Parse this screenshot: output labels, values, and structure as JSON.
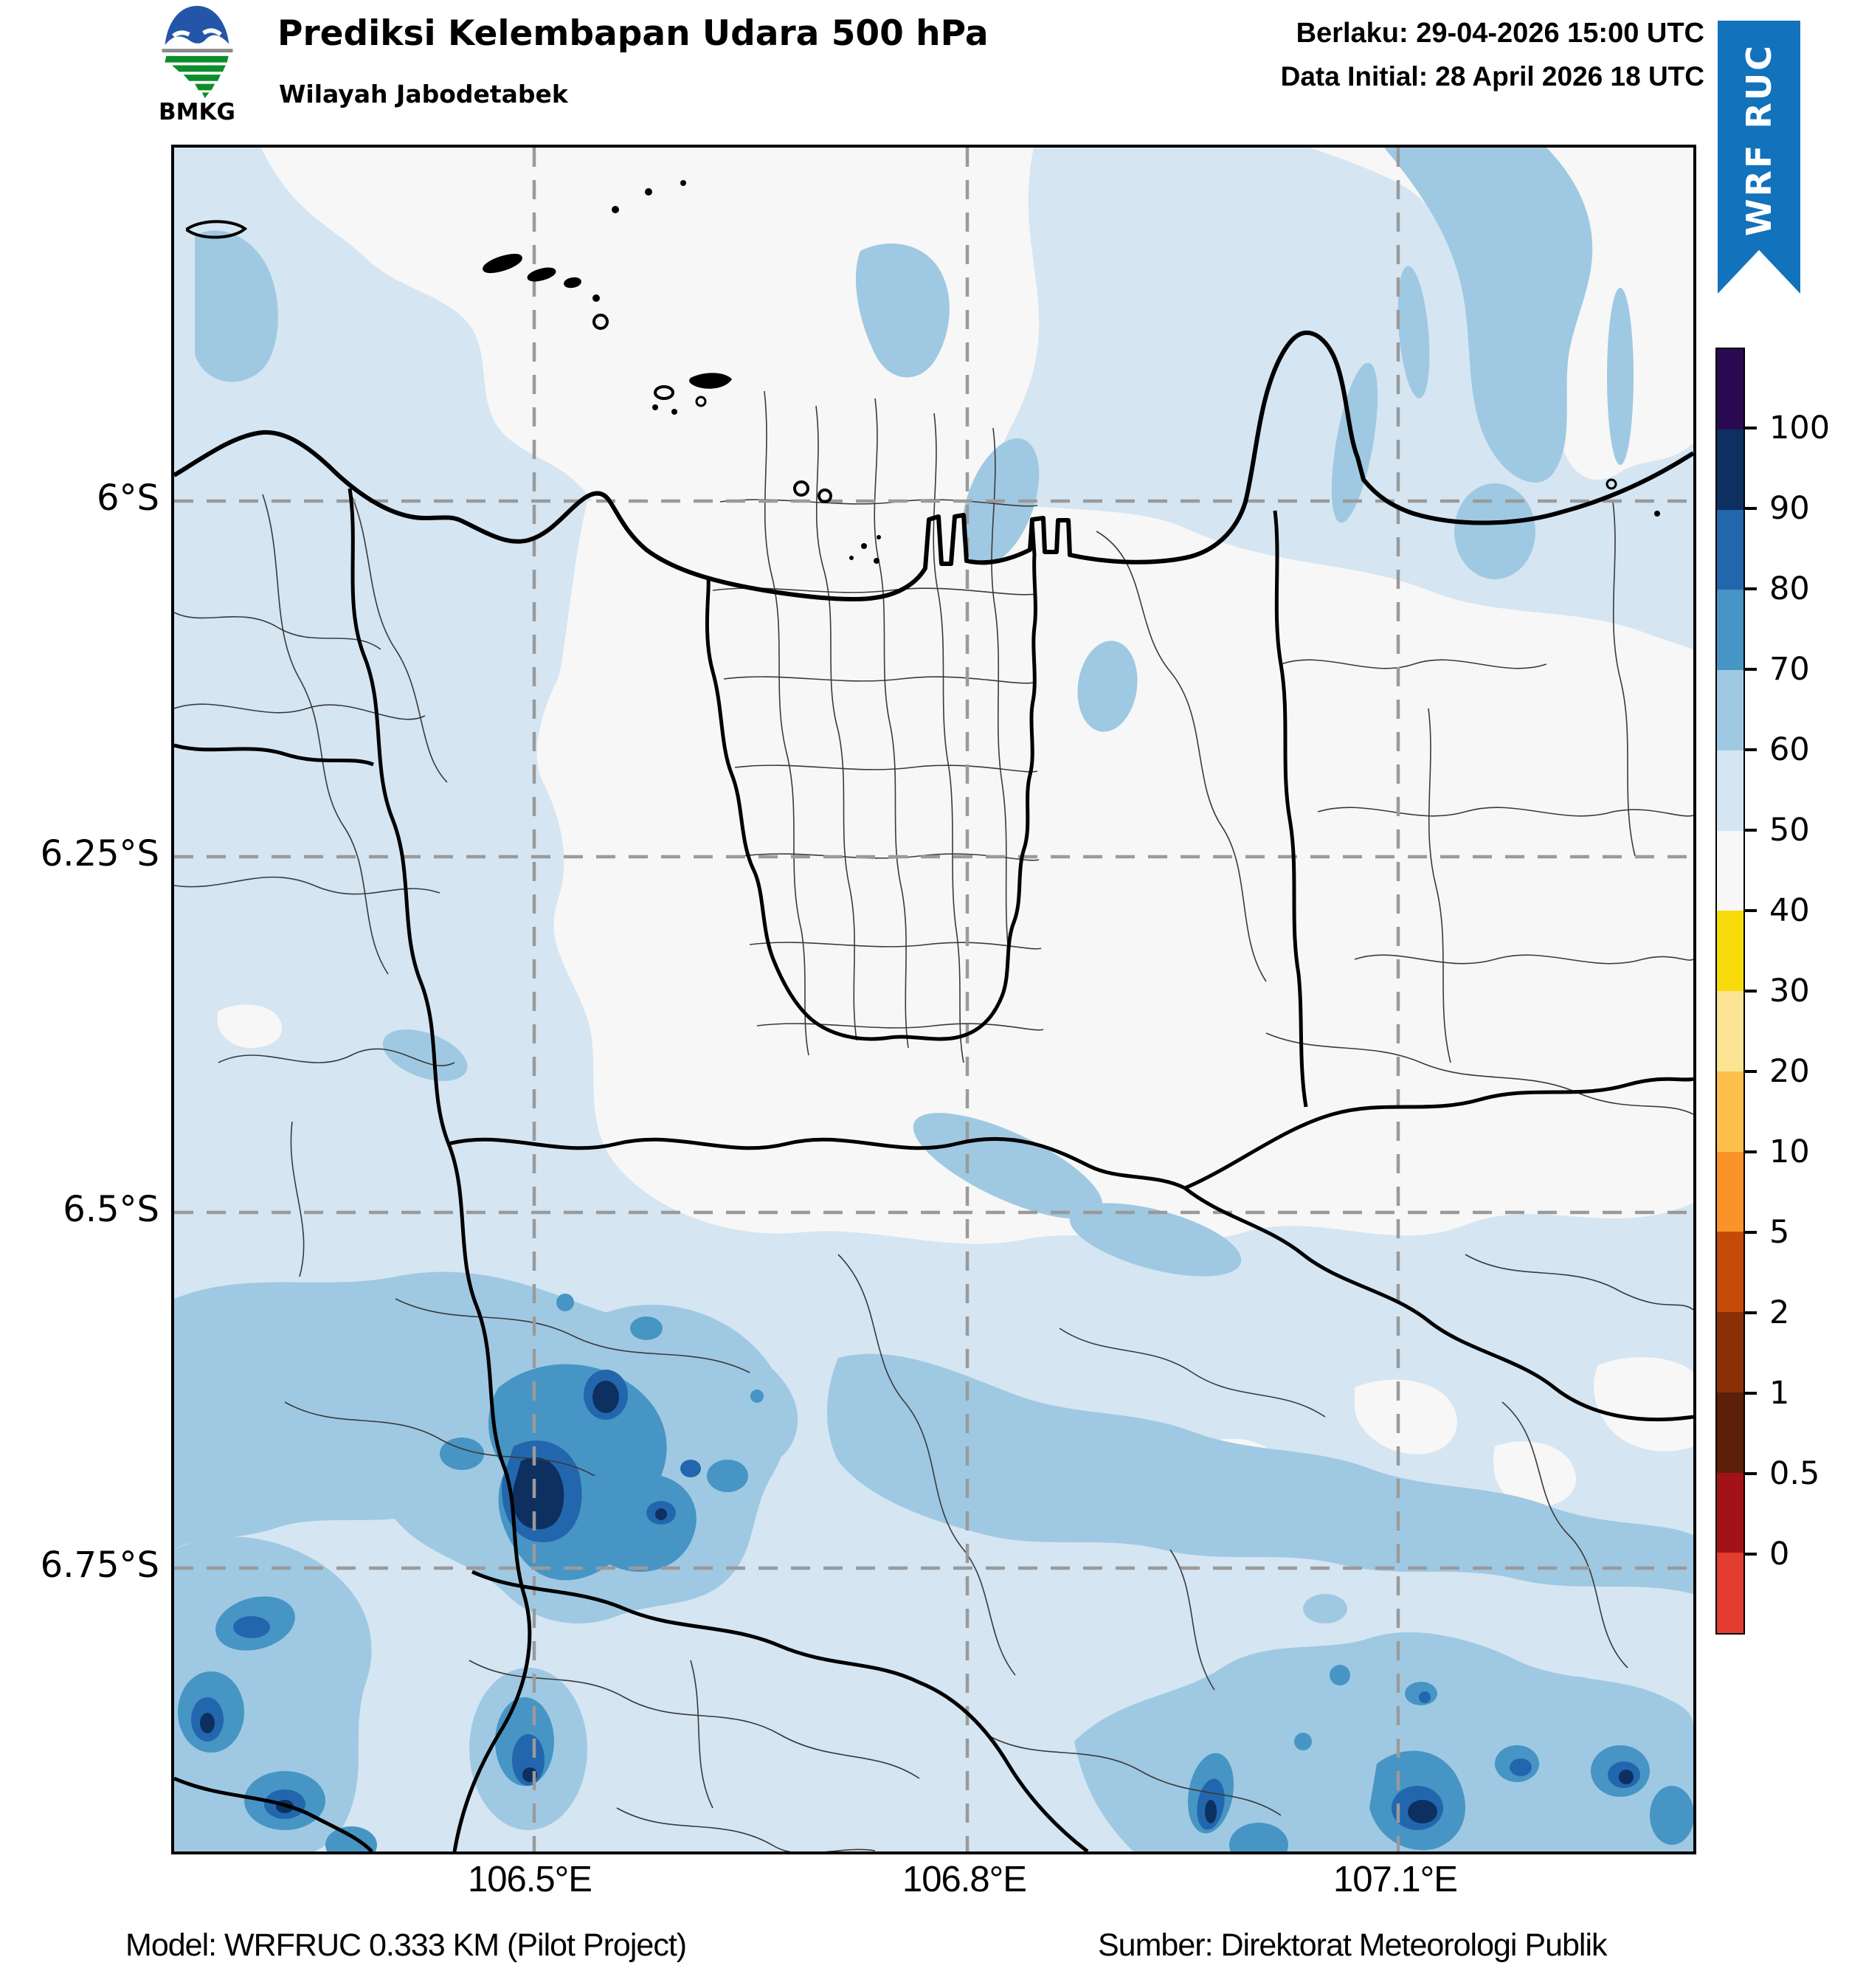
{
  "header": {
    "logo_text": "BMKG",
    "title": "Prediksi Kelembapan Udara 500 hPa",
    "subtitle": "Wilayah Jabodetabek",
    "valid_label": "Berlaku: 29-04-2026 15:00 UTC",
    "init_label": "Data Initial: 28 April 2026 18 UTC"
  },
  "ribbon": {
    "label": "WRF RUC",
    "color": "#1272bc"
  },
  "map": {
    "variable": "Kelembapan Udara 500 hPa (%)",
    "x_ticks": [
      "106.5°E",
      "106.8°E",
      "107.1°E"
    ],
    "y_ticks": [
      "6°S",
      "6.25°S",
      "6.5°S",
      "6.75°S"
    ]
  },
  "colorbar": {
    "tick_labels": [
      "100",
      "90",
      "80",
      "70",
      "60",
      "50",
      "40",
      "30",
      "20",
      "10",
      "5",
      "2",
      "1",
      "0.5",
      "0"
    ],
    "levels_bottom_to_top": [
      0,
      0.5,
      1,
      2,
      5,
      10,
      20,
      30,
      40,
      50,
      60,
      70,
      80,
      90,
      100
    ],
    "segment_colors_top_to_bottom": [
      "#2b0a51",
      "#0d3061",
      "#2267ad",
      "#4795c5",
      "#9fc9e2",
      "#d5e5f2",
      "#f7f7f7",
      "#f8db0b",
      "#fbe493",
      "#fdc04d",
      "#f9932a",
      "#c54a08",
      "#8b2f07",
      "#5c2009",
      "#a31217",
      "#e23d30"
    ],
    "band_colors": {
      "40_50": "#f7f7f7",
      "50_60": "#d5e5f2",
      "60_70": "#9fc9e2",
      "70_80": "#4795c5",
      "80_90": "#2267ad",
      "90_100": "#0d3061"
    }
  },
  "footer": {
    "model": "Model: WRFRUC 0.333 KM (Pilot Project)",
    "source": "Sumber: Direktorat Meteorologi Publik"
  }
}
